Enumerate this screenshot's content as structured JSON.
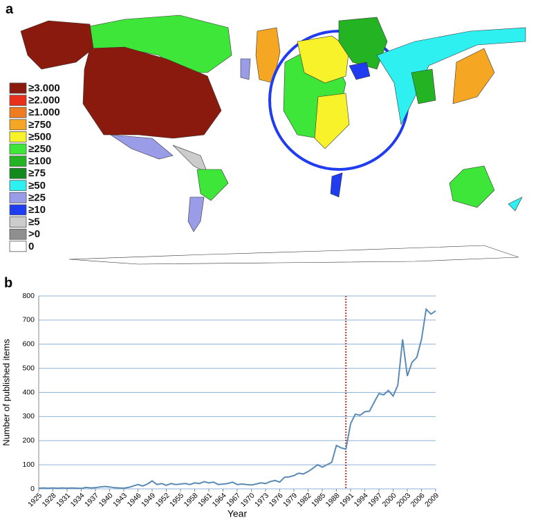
{
  "panel_labels": [
    "a",
    "b"
  ],
  "map_legend": [
    {
      "label": "≥3.000",
      "color": "#8b1a0e"
    },
    {
      "label": "≥2.000",
      "color": "#e8301a"
    },
    {
      "label": "≥1.000",
      "color": "#f07c22"
    },
    {
      "label": "≥750",
      "color": "#f5a623"
    },
    {
      "label": "≥500",
      "color": "#f7f22a"
    },
    {
      "label": "≥250",
      "color": "#3ee63a"
    },
    {
      "label": "≥100",
      "color": "#23b323"
    },
    {
      "label": "≥75",
      "color": "#138a1e"
    },
    {
      "label": "≥50",
      "color": "#2ef0f0"
    },
    {
      "label": "≥25",
      "color": "#9a9ce8"
    },
    {
      "label": "≥10",
      "color": "#1f3cf0"
    },
    {
      "label": "≥5",
      "color": "#cccccc"
    },
    {
      "label": ">0",
      "color": "#8f8f8f"
    },
    {
      "label": "0",
      "color": "#ffffff"
    }
  ],
  "chart_data": {
    "type": "line",
    "xlabel": "Year",
    "ylabel": "Number of published items",
    "x": [
      1925,
      1926,
      1927,
      1928,
      1929,
      1930,
      1931,
      1932,
      1933,
      1934,
      1935,
      1936,
      1937,
      1938,
      1939,
      1940,
      1941,
      1942,
      1943,
      1944,
      1945,
      1946,
      1947,
      1948,
      1949,
      1950,
      1951,
      1952,
      1953,
      1954,
      1955,
      1956,
      1957,
      1958,
      1959,
      1960,
      1961,
      1962,
      1963,
      1964,
      1965,
      1966,
      1967,
      1968,
      1969,
      1970,
      1971,
      1972,
      1973,
      1974,
      1975,
      1976,
      1977,
      1978,
      1979,
      1980,
      1981,
      1982,
      1983,
      1984,
      1985,
      1986,
      1987,
      1988,
      1989,
      1990,
      1991,
      1992,
      1993,
      1994,
      1995,
      1996,
      1997,
      1998,
      1999,
      2000,
      2001,
      2002,
      2003,
      2004,
      2005,
      2006,
      2007,
      2008,
      2009
    ],
    "values": [
      3,
      4,
      3,
      4,
      3,
      4,
      3,
      4,
      3,
      2,
      6,
      4,
      5,
      8,
      10,
      8,
      5,
      4,
      3,
      6,
      12,
      18,
      12,
      20,
      33,
      18,
      22,
      15,
      22,
      18,
      20,
      22,
      18,
      25,
      22,
      30,
      25,
      28,
      18,
      20,
      22,
      28,
      18,
      20,
      18,
      16,
      20,
      25,
      22,
      30,
      35,
      28,
      48,
      50,
      55,
      65,
      62,
      72,
      85,
      100,
      90,
      100,
      110,
      180,
      170,
      165,
      270,
      310,
      305,
      320,
      322,
      360,
      395,
      390,
      408,
      385,
      430,
      620,
      468,
      525,
      545,
      620,
      745,
      725,
      738
    ],
    "color": "#5b8ab5",
    "xlim": [
      1925,
      2009
    ],
    "ylim": [
      0,
      800
    ],
    "xticks": [
      1925,
      1928,
      1931,
      1934,
      1937,
      1940,
      1943,
      1946,
      1949,
      1952,
      1955,
      1958,
      1961,
      1964,
      1967,
      1970,
      1973,
      1976,
      1979,
      1982,
      1985,
      1988,
      1991,
      1994,
      1997,
      2000,
      2003,
      2006,
      2009
    ],
    "yticks": [
      0,
      100,
      200,
      300,
      400,
      500,
      600,
      700,
      800
    ],
    "grid": true,
    "grid_color": "#8fb2d6",
    "reference_line": {
      "x": 1990,
      "color": "#c0392b"
    }
  }
}
